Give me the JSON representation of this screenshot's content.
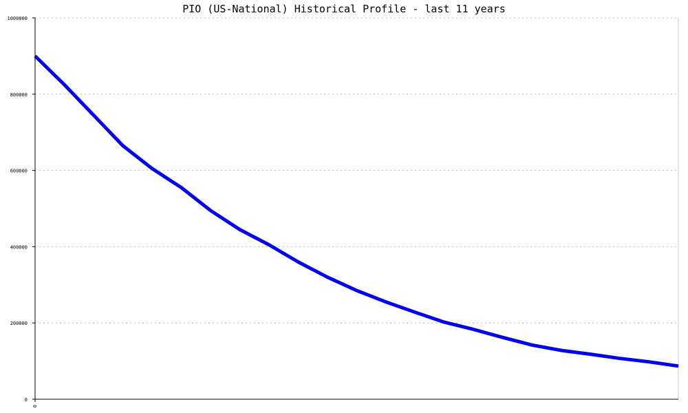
{
  "chart_data": {
    "type": "line",
    "title": "PIO (US-National) Historical Profile - last 11 years",
    "xlabel": "",
    "ylabel": "",
    "x_tick_labels": [
      "0"
    ],
    "y_tick_labels": [
      "0",
      "200000",
      "400000",
      "600000",
      "800000",
      "1000000"
    ],
    "y_ticks": [
      0,
      200000,
      400000,
      600000,
      800000,
      1000000
    ],
    "xlim": [
      0,
      11
    ],
    "ylim": [
      0,
      1000000
    ],
    "grid": true,
    "series": [
      {
        "color": "#0000ee",
        "x": [
          0,
          0.5,
          1,
          1.5,
          2,
          2.5,
          3,
          3.5,
          4,
          4.5,
          5,
          5.5,
          6,
          6.5,
          7,
          7.5,
          8,
          8.5,
          9,
          9.5,
          10,
          10.5,
          11
        ],
        "values": [
          900000,
          825000,
          745000,
          665000,
          605000,
          555000,
          495000,
          445000,
          405000,
          360000,
          320000,
          285000,
          255000,
          228000,
          202000,
          183000,
          162000,
          142000,
          128000,
          118000,
          107000,
          98000,
          87000
        ]
      }
    ]
  }
}
